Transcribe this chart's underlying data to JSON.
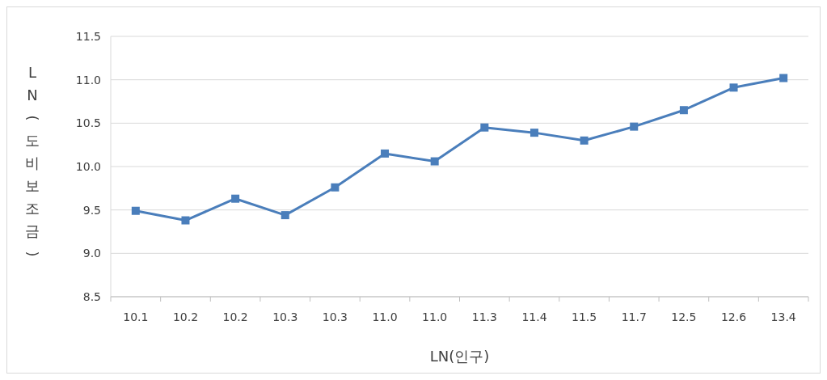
{
  "chart_data": {
    "type": "line",
    "xlabel": "LN(인구)",
    "ylabel": "LN(도비보조금)",
    "categories": [
      "10.1",
      "10.2",
      "10.2",
      "10.3",
      "10.3",
      "11.0",
      "11.0",
      "11.3",
      "11.4",
      "11.5",
      "11.7",
      "12.5",
      "12.6",
      "13.4"
    ],
    "series": [
      {
        "color": "#4a7ebb",
        "values": [
          9.49,
          9.38,
          9.63,
          9.44,
          9.76,
          10.15,
          10.06,
          10.45,
          10.39,
          10.3,
          10.46,
          10.65,
          10.91,
          11.02
        ]
      }
    ],
    "ylim": [
      8.5,
      11.5
    ],
    "yticks": [
      8.5,
      {
        "value": 9,
        "label": "9.0"
      },
      9.5,
      {
        "value": 10,
        "label": "10.0"
      },
      10.5,
      {
        "value": 11,
        "label": "11.0"
      },
      11.5
    ],
    "grid": "y",
    "marker": "square",
    "line_style": "solid"
  }
}
